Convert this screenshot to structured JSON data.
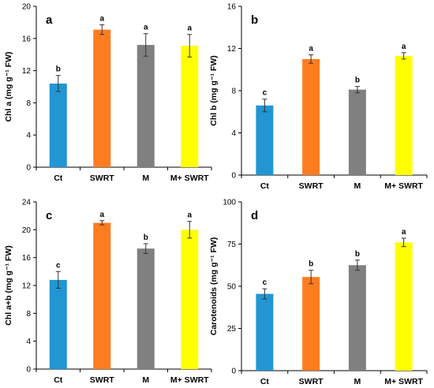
{
  "colors": {
    "Ct": "#2196d3",
    "SWRT": "#ff7c20",
    "M": "#808080",
    "M+ SWRT": "#ffff00",
    "axis": "#000000",
    "errorbar": "#333333"
  },
  "chart_data": [
    {
      "type": "bar",
      "panel": "a",
      "ylabel": "Chl a (mg g⁻¹ FW)",
      "categories": [
        "Ct",
        "SWRT",
        "M",
        "M+ SWRT"
      ],
      "values": [
        10.4,
        17.1,
        15.2,
        15.1
      ],
      "errors": [
        1.0,
        0.6,
        1.4,
        1.4
      ],
      "letters": [
        "b",
        "a",
        "a",
        "a"
      ],
      "ylim": [
        0,
        20
      ],
      "yticks": [
        0,
        4,
        8,
        12,
        16,
        20
      ],
      "grid": false
    },
    {
      "type": "bar",
      "panel": "b",
      "ylabel": "Chl b (mg g⁻¹ FW)",
      "categories": [
        "Ct",
        "SWRT",
        "M",
        "M+ SWRT"
      ],
      "values": [
        6.6,
        11.0,
        8.1,
        11.3
      ],
      "errors": [
        0.6,
        0.4,
        0.3,
        0.3
      ],
      "letters": [
        "c",
        "a",
        "b",
        "a"
      ],
      "ylim": [
        0,
        16
      ],
      "yticks": [
        0,
        4,
        8,
        12,
        16
      ],
      "grid": false
    },
    {
      "type": "bar",
      "panel": "c",
      "ylabel": "Chl a+b (mg g⁻¹ FW)",
      "categories": [
        "Ct",
        "SWRT",
        "M",
        "M+ SWRT"
      ],
      "values": [
        12.8,
        21.0,
        17.3,
        20.0
      ],
      "errors": [
        1.2,
        0.3,
        0.7,
        1.2
      ],
      "letters": [
        "c",
        "a",
        "b",
        "a"
      ],
      "ylim": [
        0,
        24
      ],
      "yticks": [
        0,
        4,
        8,
        12,
        16,
        20,
        24
      ],
      "grid": false
    },
    {
      "type": "bar",
      "panel": "d",
      "ylabel": "Carotenoids (mg g⁻¹ FW)",
      "categories": [
        "Ct",
        "SWRT",
        "M",
        "M+ SWRT"
      ],
      "values": [
        45.5,
        55.5,
        62.5,
        76.0
      ],
      "errors": [
        3.0,
        4.0,
        3.0,
        2.5
      ],
      "letters": [
        "c",
        "b",
        "b",
        "a"
      ],
      "ylim": [
        0,
        100
      ],
      "yticks": [
        0,
        25,
        50,
        75,
        100
      ],
      "grid": false
    }
  ]
}
